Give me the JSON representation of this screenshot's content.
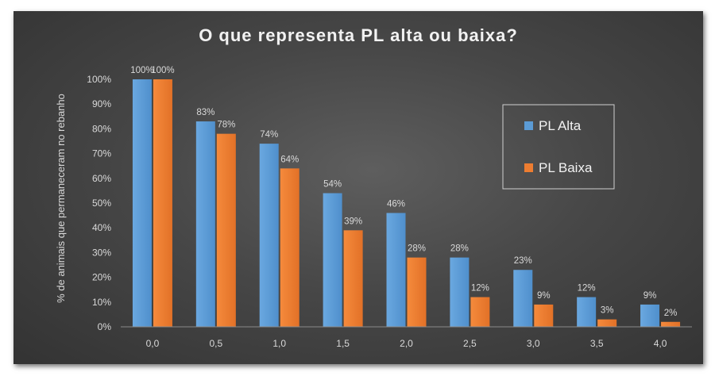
{
  "chart_data": {
    "type": "bar",
    "title": "O que representa PL alta ou baixa?",
    "xlabel": "",
    "ylabel": "% de animais que permaneceram no rebanho",
    "categories": [
      "0,0",
      "0,5",
      "1,0",
      "1,5",
      "2,0",
      "2,5",
      "3,0",
      "3,5",
      "4,0"
    ],
    "y_ticks": [
      "0%",
      "10%",
      "20%",
      "30%",
      "40%",
      "50%",
      "60%",
      "70%",
      "80%",
      "90%",
      "100%"
    ],
    "ylim": [
      0,
      100
    ],
    "grid": false,
    "legend_position": "top-right",
    "series": [
      {
        "name": "PL Alta",
        "color": "#5b9bd5",
        "values": [
          100,
          83,
          74,
          54,
          46,
          28,
          23,
          12,
          9
        ],
        "labels": [
          "100%",
          "83%",
          "74%",
          "54%",
          "46%",
          "28%",
          "23%",
          "12%",
          "9%"
        ]
      },
      {
        "name": "PL Baixa",
        "color": "#ed7d31",
        "values": [
          100,
          78,
          64,
          39,
          28,
          12,
          9,
          3,
          2
        ],
        "labels": [
          "100%",
          "78%",
          "64%",
          "39%",
          "28%",
          "12%",
          "9%",
          "3%",
          "2%"
        ]
      }
    ]
  }
}
